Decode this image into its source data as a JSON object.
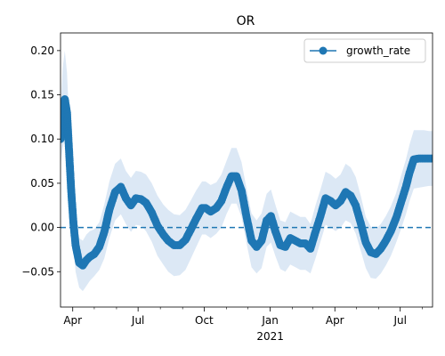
{
  "chart_data": {
    "type": "line",
    "title": "OR",
    "xlabel": "",
    "ylabel": "",
    "x_range": [
      "2020-03-15",
      "2021-08-15"
    ],
    "ylim": [
      -0.09,
      0.22
    ],
    "y_ticks": [
      -0.05,
      0.0,
      0.05,
      0.1,
      0.15,
      0.2
    ],
    "y_tick_labels": [
      "−0.05",
      "0.00",
      "0.05",
      "0.10",
      "0.15",
      "0.20"
    ],
    "x_ticks": [
      {
        "date": "2020-04-01",
        "label": "Apr",
        "sublabel": ""
      },
      {
        "date": "2020-07-01",
        "label": "Jul",
        "sublabel": ""
      },
      {
        "date": "2020-10-01",
        "label": "Oct",
        "sublabel": ""
      },
      {
        "date": "2021-01-01",
        "label": "Jan",
        "sublabel": "2021"
      },
      {
        "date": "2021-04-01",
        "label": "Apr",
        "sublabel": ""
      },
      {
        "date": "2021-07-01",
        "label": "Jul",
        "sublabel": ""
      }
    ],
    "minor_x_ticks": [
      "2020-05-01",
      "2020-06-01",
      "2020-08-01",
      "2020-09-01",
      "2020-11-01",
      "2020-12-01",
      "2021-02-01",
      "2021-03-01",
      "2021-05-01",
      "2021-06-01",
      "2021-08-01"
    ],
    "grid": false,
    "legend": {
      "position": "upper-right"
    },
    "reference_line": {
      "y": 0.0,
      "style": "dashed"
    },
    "colors": {
      "series": "#1f77b4",
      "band": "#dce8f5"
    },
    "series": [
      {
        "name": "growth_rate",
        "marker": "circle",
        "x": [
          "2020-03-15",
          "2020-03-18",
          "2020-03-21",
          "2020-03-24",
          "2020-03-27",
          "2020-03-30",
          "2020-04-02",
          "2020-04-05",
          "2020-04-10",
          "2020-04-15",
          "2020-04-20",
          "2020-04-25",
          "2020-05-01",
          "2020-05-08",
          "2020-05-15",
          "2020-05-22",
          "2020-05-30",
          "2020-06-07",
          "2020-06-14",
          "2020-06-21",
          "2020-06-28",
          "2020-07-05",
          "2020-07-12",
          "2020-07-20",
          "2020-07-28",
          "2020-08-05",
          "2020-08-12",
          "2020-08-20",
          "2020-08-28",
          "2020-09-05",
          "2020-09-12",
          "2020-09-20",
          "2020-09-28",
          "2020-10-03",
          "2020-10-10",
          "2020-10-18",
          "2020-10-25",
          "2020-11-01",
          "2020-11-08",
          "2020-11-15",
          "2020-11-22",
          "2020-11-29",
          "2020-12-06",
          "2020-12-13",
          "2020-12-20",
          "2020-12-27",
          "2021-01-02",
          "2021-01-08",
          "2021-01-15",
          "2021-01-22",
          "2021-01-29",
          "2021-02-05",
          "2021-02-12",
          "2021-02-19",
          "2021-02-26",
          "2021-03-05",
          "2021-03-12",
          "2021-03-19",
          "2021-03-26",
          "2021-04-02",
          "2021-04-09",
          "2021-04-16",
          "2021-04-23",
          "2021-04-30",
          "2021-05-07",
          "2021-05-14",
          "2021-05-21",
          "2021-05-28",
          "2021-06-04",
          "2021-06-11",
          "2021-06-18",
          "2021-06-25",
          "2021-07-02",
          "2021-07-09",
          "2021-07-14",
          "2021-07-20",
          "2021-07-27",
          "2021-08-03",
          "2021-08-10",
          "2021-08-15"
        ],
        "y": [
          0.1,
          0.135,
          0.145,
          0.13,
          0.085,
          0.04,
          0.005,
          -0.02,
          -0.04,
          -0.043,
          -0.037,
          -0.033,
          -0.03,
          -0.022,
          -0.005,
          0.02,
          0.04,
          0.046,
          0.033,
          0.025,
          0.033,
          0.032,
          0.028,
          0.017,
          0.002,
          -0.008,
          -0.015,
          -0.02,
          -0.02,
          -0.014,
          -0.003,
          0.01,
          0.022,
          0.022,
          0.018,
          0.022,
          0.03,
          0.045,
          0.058,
          0.058,
          0.042,
          0.012,
          -0.015,
          -0.022,
          -0.015,
          0.008,
          0.013,
          -0.004,
          -0.02,
          -0.022,
          -0.012,
          -0.015,
          -0.018,
          -0.018,
          -0.024,
          -0.005,
          0.013,
          0.033,
          0.03,
          0.025,
          0.03,
          0.04,
          0.036,
          0.025,
          0.005,
          -0.017,
          -0.028,
          -0.03,
          -0.024,
          -0.015,
          -0.004,
          0.01,
          0.028,
          0.046,
          0.062,
          0.077,
          0.078,
          0.078,
          0.078,
          0.078
        ],
        "y_lower": [
          0.07,
          0.09,
          0.1,
          0.09,
          0.055,
          0.015,
          -0.02,
          -0.05,
          -0.068,
          -0.072,
          -0.066,
          -0.06,
          -0.055,
          -0.048,
          -0.035,
          -0.012,
          0.008,
          0.015,
          0.004,
          -0.005,
          0.003,
          0.002,
          -0.004,
          -0.016,
          -0.032,
          -0.042,
          -0.05,
          -0.055,
          -0.054,
          -0.048,
          -0.036,
          -0.022,
          -0.008,
          -0.008,
          -0.012,
          -0.007,
          0.0,
          0.015,
          0.027,
          0.027,
          0.012,
          -0.018,
          -0.045,
          -0.052,
          -0.046,
          -0.022,
          -0.017,
          -0.032,
          -0.047,
          -0.05,
          -0.042,
          -0.045,
          -0.048,
          -0.048,
          -0.052,
          -0.035,
          -0.016,
          0.003,
          0.0,
          -0.004,
          0.0,
          0.008,
          0.005,
          -0.007,
          -0.026,
          -0.046,
          -0.057,
          -0.058,
          -0.052,
          -0.043,
          -0.032,
          -0.018,
          -0.002,
          0.015,
          0.03,
          0.044,
          0.045,
          0.046,
          0.047,
          0.047
        ],
        "y_upper": [
          0.13,
          0.18,
          0.2,
          0.175,
          0.12,
          0.07,
          0.03,
          0.01,
          -0.012,
          -0.015,
          -0.008,
          -0.004,
          -0.002,
          0.006,
          0.026,
          0.052,
          0.072,
          0.078,
          0.064,
          0.056,
          0.064,
          0.063,
          0.06,
          0.05,
          0.036,
          0.026,
          0.02,
          0.015,
          0.014,
          0.02,
          0.03,
          0.042,
          0.052,
          0.052,
          0.048,
          0.051,
          0.06,
          0.075,
          0.09,
          0.09,
          0.074,
          0.044,
          0.016,
          0.008,
          0.016,
          0.038,
          0.043,
          0.026,
          0.008,
          0.006,
          0.018,
          0.015,
          0.012,
          0.012,
          0.004,
          0.025,
          0.043,
          0.063,
          0.06,
          0.055,
          0.06,
          0.072,
          0.068,
          0.057,
          0.036,
          0.012,
          0.001,
          -0.002,
          0.004,
          0.013,
          0.024,
          0.038,
          0.058,
          0.077,
          0.094,
          0.11,
          0.11,
          0.11,
          0.109,
          0.109
        ]
      }
    ]
  }
}
